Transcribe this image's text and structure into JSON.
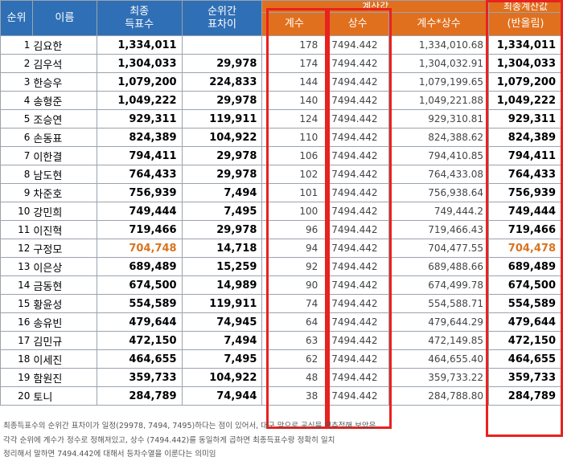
{
  "headers": {
    "rank": "순위",
    "name": "이름",
    "votes_line1": "최종",
    "votes_line2": "득표수",
    "diff_line1": "순위간",
    "diff_line2": "표차이",
    "calc_group": "계산값",
    "coef": "계수",
    "const": "상수",
    "prod": "계수*상수",
    "final_line1": "최종계산값",
    "final_line2": "(반올림)"
  },
  "rows": [
    {
      "rank": "1",
      "name": "김요한",
      "votes": "1,334,011",
      "diff": "",
      "coef": "178",
      "const": "7494.442",
      "prod": "1,334,010.68",
      "final": "1,334,011"
    },
    {
      "rank": "2",
      "name": "김우석",
      "votes": "1,304,033",
      "diff": "29,978",
      "coef": "174",
      "const": "7494.442",
      "prod": "1,304,032.91",
      "final": "1,304,033"
    },
    {
      "rank": "3",
      "name": "한승우",
      "votes": "1,079,200",
      "diff": "224,833",
      "coef": "144",
      "const": "7494.442",
      "prod": "1,079,199.65",
      "final": "1,079,200"
    },
    {
      "rank": "4",
      "name": "송형준",
      "votes": "1,049,222",
      "diff": "29,978",
      "coef": "140",
      "const": "7494.442",
      "prod": "1,049,221.88",
      "final": "1,049,222"
    },
    {
      "rank": "5",
      "name": "조승연",
      "votes": "929,311",
      "diff": "119,911",
      "coef": "124",
      "const": "7494.442",
      "prod": "929,310.81",
      "final": "929,311"
    },
    {
      "rank": "6",
      "name": "손동표",
      "votes": "824,389",
      "diff": "104,922",
      "coef": "110",
      "const": "7494.442",
      "prod": "824,388.62",
      "final": "824,389"
    },
    {
      "rank": "7",
      "name": "이한결",
      "votes": "794,411",
      "diff": "29,978",
      "coef": "106",
      "const": "7494.442",
      "prod": "794,410.85",
      "final": "794,411"
    },
    {
      "rank": "8",
      "name": "남도현",
      "votes": "764,433",
      "diff": "29,978",
      "coef": "102",
      "const": "7494.442",
      "prod": "764,433.08",
      "final": "764,433"
    },
    {
      "rank": "9",
      "name": "차준호",
      "votes": "756,939",
      "diff": "7,494",
      "coef": "101",
      "const": "7494.442",
      "prod": "756,938.64",
      "final": "756,939"
    },
    {
      "rank": "10",
      "name": "강민희",
      "votes": "749,444",
      "diff": "7,495",
      "coef": "100",
      "const": "7494.442",
      "prod": "749,444.2",
      "final": "749,444"
    },
    {
      "rank": "11",
      "name": "이진혁",
      "votes": "719,466",
      "diff": "29,978",
      "coef": "96",
      "const": "7494.442",
      "prod": "719,466.43",
      "final": "719,466"
    },
    {
      "rank": "12",
      "name": "구정모",
      "votes": "704,748",
      "diff": "14,718",
      "coef": "94",
      "const": "7494.442",
      "prod": "704,477.55",
      "final": "704,478",
      "highlight": true
    },
    {
      "rank": "13",
      "name": "이은상",
      "votes": "689,489",
      "diff": "15,259",
      "coef": "92",
      "const": "7494.442",
      "prod": "689,488.66",
      "final": "689,489"
    },
    {
      "rank": "14",
      "name": "금동현",
      "votes": "674,500",
      "diff": "14,989",
      "coef": "90",
      "const": "7494.442",
      "prod": "674,499.78",
      "final": "674,500"
    },
    {
      "rank": "15",
      "name": "황윤성",
      "votes": "554,589",
      "diff": "119,911",
      "coef": "74",
      "const": "7494.442",
      "prod": "554,588.71",
      "final": "554,589"
    },
    {
      "rank": "16",
      "name": "송유빈",
      "votes": "479,644",
      "diff": "74,945",
      "coef": "64",
      "const": "7494.442",
      "prod": "479,644.29",
      "final": "479,644"
    },
    {
      "rank": "17",
      "name": "김민규",
      "votes": "472,150",
      "diff": "7,494",
      "coef": "63",
      "const": "7494.442",
      "prod": "472,149.85",
      "final": "472,150"
    },
    {
      "rank": "18",
      "name": "이세진",
      "votes": "464,655",
      "diff": "7,495",
      "coef": "62",
      "const": "7494.442",
      "prod": "464,655.40",
      "final": "464,655"
    },
    {
      "rank": "19",
      "name": "함원진",
      "votes": "359,733",
      "diff": "104,922",
      "coef": "48",
      "const": "7494.442",
      "prod": "359,733.22",
      "final": "359,733"
    },
    {
      "rank": "20",
      "name": "토니",
      "votes": "284,789",
      "diff": "74,944",
      "coef": "38",
      "const": "7494.442",
      "prod": "284,788.80",
      "final": "284,789"
    }
  ],
  "notes": [
    "최종득표수의 순위간 표차이가 일정(29978, 7494, 7495)하다는 점이 있어서, 대구 맞으로 공식을 역추적해 보았음.",
    "각각 순위에 계수가 정수로 정해져있고, 상수 (7494.442)를 동일하게 곱하면 최종득표수랑 정확히 일치",
    "정리해서 말하면 7494.442에 대해서 등차수열을 이룬다는 의미임"
  ],
  "colors": {
    "header_blue": "#2f6fb6",
    "header_orange": "#e0701e",
    "highlight_box": "#e8221e",
    "highlight_text": "#d9731f"
  }
}
